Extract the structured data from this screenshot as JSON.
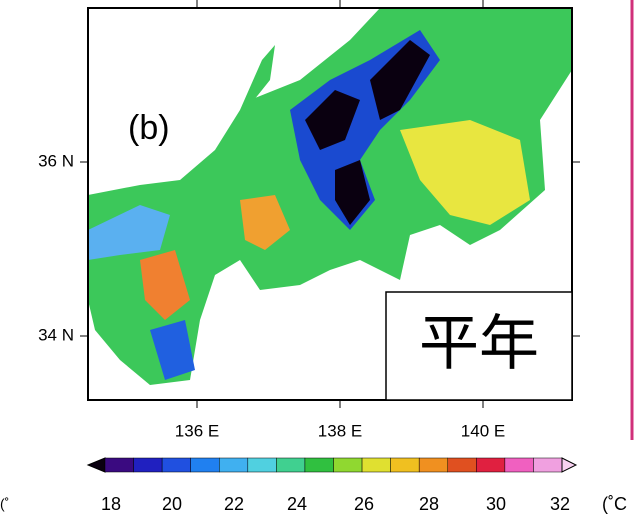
{
  "panel_label": "(b)",
  "lat_labels": [
    "36 N",
    "34 N"
  ],
  "lon_labels": [
    "136 E",
    "138 E",
    "140 E"
  ],
  "stamp": "平年",
  "colorbar": {
    "labels": [
      "18",
      "20",
      "22",
      "24",
      "26",
      "28",
      "30",
      "32"
    ],
    "unit": "(˚C",
    "left_unit": "(˚"
  }
}
